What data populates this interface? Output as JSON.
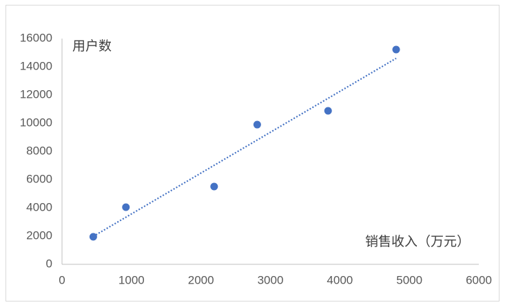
{
  "chart_data": {
    "type": "scatter",
    "x_label": "销售收入（万元）",
    "y_label": "用户数",
    "series": [
      {
        "color": "#4472c4",
        "x": [
          450,
          920,
          2190,
          2810,
          3830,
          4810
        ],
        "values": [
          1950,
          4050,
          5510,
          9900,
          10880,
          15220
        ]
      }
    ],
    "xlim": [
      0,
      6000
    ],
    "xticks": [
      0,
      1000,
      2000,
      3000,
      4000,
      5000,
      6000
    ],
    "ylim": [
      0,
      16000
    ],
    "yticks": [
      0,
      2000,
      4000,
      6000,
      8000,
      10000,
      12000,
      14000,
      16000
    ],
    "trendline": true,
    "grid": false
  }
}
